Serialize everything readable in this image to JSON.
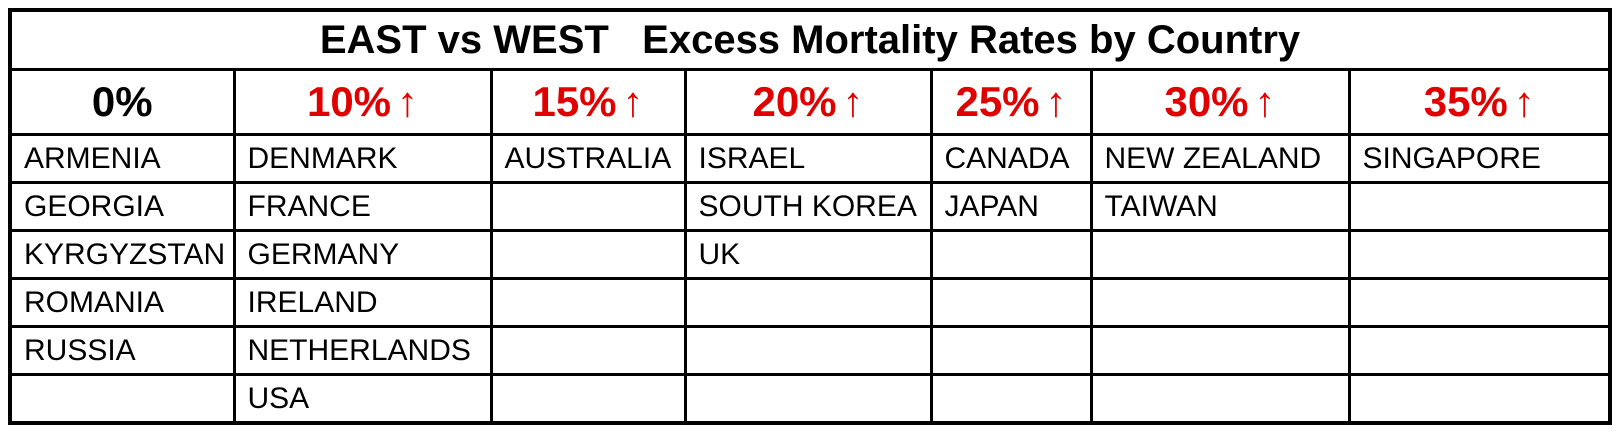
{
  "title": "EAST vs WEST   Excess Mortality Rates by Country",
  "colors": {
    "increase": "#e00000",
    "baseline": "#000000",
    "border": "#000000"
  },
  "columns": [
    {
      "label": "0%",
      "increase": false,
      "countries": [
        "ARMENIA",
        "GEORGIA",
        "KYRGYZSTAN",
        "ROMANIA",
        "RUSSIA"
      ]
    },
    {
      "label": "10%",
      "increase": true,
      "countries": [
        "DENMARK",
        "FRANCE",
        "GERMANY",
        "IRELAND",
        "NETHERLANDS",
        "USA"
      ]
    },
    {
      "label": "15%",
      "increase": true,
      "countries": [
        "AUSTRALIA"
      ]
    },
    {
      "label": "20%",
      "increase": true,
      "countries": [
        "ISRAEL",
        "SOUTH KOREA",
        "UK"
      ]
    },
    {
      "label": "25%",
      "increase": true,
      "countries": [
        "CANADA",
        "JAPAN"
      ]
    },
    {
      "label": "30%",
      "increase": true,
      "countries": [
        "NEW ZEALAND",
        "TAIWAN"
      ]
    },
    {
      "label": "35%",
      "increase": true,
      "countries": [
        "SINGAPORE"
      ]
    }
  ],
  "up_arrow_glyph": "↑"
}
